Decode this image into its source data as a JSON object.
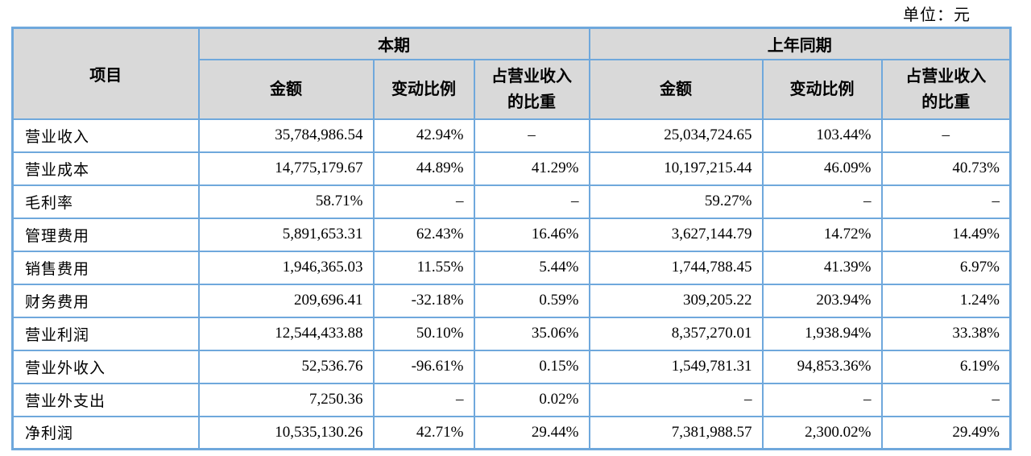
{
  "page": {
    "unit_label": "单位：元"
  },
  "colors": {
    "border_blue": "#6fa8dc",
    "header_gray": "#d9d9d9",
    "text": "#000000"
  },
  "table": {
    "item_header": "项目",
    "groups": [
      {
        "label": "本期",
        "sub": [
          "金额",
          "变动比例",
          "占营业收入的比重"
        ]
      },
      {
        "label": "上年同期",
        "sub": [
          "金额",
          "变动比例",
          "占营业收入的比重"
        ]
      }
    ],
    "rows": [
      {
        "item": "营业收入",
        "cells": [
          {
            "t": "35,784,986.54"
          },
          {
            "t": "42.94%"
          },
          {
            "t": "–",
            "align": "center"
          },
          {
            "t": "25,034,724.65"
          },
          {
            "t": "103.44%"
          },
          {
            "t": "–",
            "align": "center"
          }
        ]
      },
      {
        "item": "营业成本",
        "cells": [
          {
            "t": "14,775,179.67"
          },
          {
            "t": "44.89%"
          },
          {
            "t": "41.29%"
          },
          {
            "t": "10,197,215.44"
          },
          {
            "t": "46.09%"
          },
          {
            "t": "40.73%"
          }
        ]
      },
      {
        "item": "毛利率",
        "cells": [
          {
            "t": "58.71%"
          },
          {
            "t": "–"
          },
          {
            "t": "–"
          },
          {
            "t": "59.27%"
          },
          {
            "t": "–"
          },
          {
            "t": "–"
          }
        ]
      },
      {
        "item": "管理费用",
        "cells": [
          {
            "t": "5,891,653.31"
          },
          {
            "t": "62.43%"
          },
          {
            "t": "16.46%"
          },
          {
            "t": "3,627,144.79"
          },
          {
            "t": "14.72%"
          },
          {
            "t": "14.49%"
          }
        ]
      },
      {
        "item": "销售费用",
        "cells": [
          {
            "t": "1,946,365.03"
          },
          {
            "t": "11.55%"
          },
          {
            "t": "5.44%"
          },
          {
            "t": "1,744,788.45"
          },
          {
            "t": "41.39%"
          },
          {
            "t": "6.97%"
          }
        ]
      },
      {
        "item": "财务费用",
        "cells": [
          {
            "t": "209,696.41"
          },
          {
            "t": "-32.18%"
          },
          {
            "t": "0.59%"
          },
          {
            "t": "309,205.22"
          },
          {
            "t": "203.94%"
          },
          {
            "t": "1.24%"
          }
        ]
      },
      {
        "item": "营业利润",
        "cells": [
          {
            "t": "12,544,433.88"
          },
          {
            "t": "50.10%"
          },
          {
            "t": "35.06%"
          },
          {
            "t": "8,357,270.01"
          },
          {
            "t": "1,938.94%"
          },
          {
            "t": "33.38%"
          }
        ]
      },
      {
        "item": "营业外收入",
        "cells": [
          {
            "t": "52,536.76"
          },
          {
            "t": "-96.61%"
          },
          {
            "t": "0.15%"
          },
          {
            "t": "1,549,781.31"
          },
          {
            "t": "94,853.36%"
          },
          {
            "t": "6.19%"
          }
        ]
      },
      {
        "item": "营业外支出",
        "cells": [
          {
            "t": "7,250.36"
          },
          {
            "t": "–"
          },
          {
            "t": "0.02%"
          },
          {
            "t": "–"
          },
          {
            "t": "–"
          },
          {
            "t": "–"
          }
        ]
      },
      {
        "item": "净利润",
        "cells": [
          {
            "t": "10,535,130.26"
          },
          {
            "t": "42.71%"
          },
          {
            "t": "29.44%"
          },
          {
            "t": "7,381,988.57"
          },
          {
            "t": "2,300.02%"
          },
          {
            "t": "29.49%"
          }
        ]
      }
    ]
  }
}
